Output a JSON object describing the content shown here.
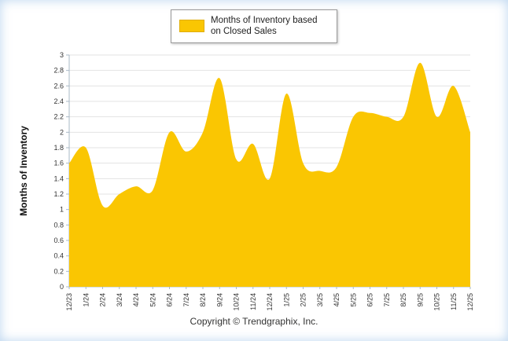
{
  "legend": {
    "label": "Months of Inventory based on Closed Sales"
  },
  "footer": {
    "copyright": "Copyright © Trendgraphix, Inc."
  },
  "colors": {
    "area": "#FAC602",
    "area_border": "#E0AD00",
    "grid": "#E3E3E3",
    "axis": "#A9B8C6",
    "tick_text": "#333333"
  },
  "chart_data": {
    "type": "area",
    "title": "Months of Inventory based on Closed Sales",
    "ylabel": "Months of Inventory",
    "xlabel": "",
    "ylim": [
      0,
      3
    ],
    "ytick_step": 0.2,
    "y_ticks": [
      "0",
      "0.2",
      "0.4",
      "0.6",
      "0.8",
      "1",
      "1.2",
      "1.4",
      "1.6",
      "1.8",
      "2",
      "2.2",
      "2.4",
      "2.6",
      "2.8",
      "3"
    ],
    "grid": true,
    "legend_position": "top-center",
    "categories": [
      "12/23",
      "1/24",
      "2/24",
      "3/24",
      "4/24",
      "5/24",
      "6/24",
      "7/24",
      "8/24",
      "9/24",
      "10/24",
      "11/24",
      "12/24",
      "1/25",
      "2/25",
      "3/25",
      "4/25",
      "5/25",
      "6/25",
      "7/25",
      "8/25",
      "9/25",
      "10/25",
      "11/25",
      "12/25"
    ],
    "values": [
      1.6,
      1.8,
      1.05,
      1.2,
      1.3,
      1.25,
      2.0,
      1.75,
      2.0,
      2.7,
      1.65,
      1.85,
      1.4,
      2.5,
      1.6,
      1.5,
      1.55,
      2.2,
      2.25,
      2.2,
      2.2,
      2.9,
      2.2,
      2.6,
      2.0
    ]
  }
}
